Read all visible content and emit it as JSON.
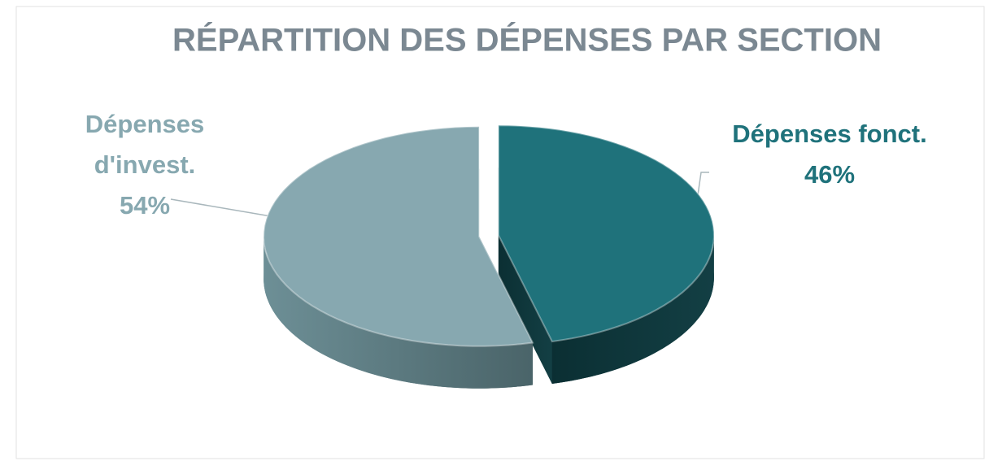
{
  "chart_data": {
    "type": "pie",
    "title": "RÉPARTITION DES DÉPENSES PAR SECTION",
    "categories": [
      "Dépenses fonct.",
      "Dépenses d'invest."
    ],
    "values": [
      46,
      54
    ],
    "value_labels": [
      "46%",
      "54%"
    ],
    "colors": [
      "#1f727b",
      "#87a8b0"
    ]
  }
}
